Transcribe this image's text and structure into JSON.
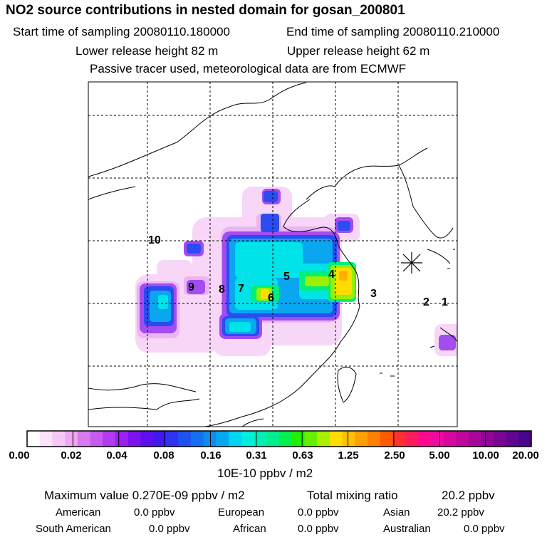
{
  "header": {
    "title": "NO2 source contributions in nested domain for gosan_200801",
    "start_label": "Start time of sampling 20080110.180000",
    "end_label": "End time of sampling 20080110.210000",
    "lower_label": "Lower release height   82 m",
    "upper_label": "Upper release height   62 m",
    "tracer_label": "Passive tracer used, meteorological data are from ECMWF"
  },
  "map": {
    "region_markers": [
      "1",
      "2",
      "3",
      "4",
      "5",
      "6",
      "7",
      "8",
      "9",
      "10"
    ],
    "receptor_symbol": "gosan-receptor-star"
  },
  "colorbar": {
    "labels": [
      "0.00",
      "0.02",
      "0.04",
      "0.08",
      "0.16",
      "0.31",
      "0.63",
      "1.25",
      "2.50",
      "5.00",
      "10.00",
      "20.00"
    ],
    "unit": "10E-10 ppbv / m2",
    "colors": [
      "#ffffff",
      "#fbe3fb",
      "#f5c8f7",
      "#efa7f3",
      "#d77cee",
      "#c75bef",
      "#b03bef",
      "#9c20ef",
      "#7d12ef",
      "#5e0ff0",
      "#3f19f0",
      "#2d33f0",
      "#1e52f0",
      "#1470f0",
      "#0b8df0",
      "#06a9f0",
      "#00d4f0",
      "#00ecdf",
      "#00efb8",
      "#00ef8e",
      "#00ef4f",
      "#20ef00",
      "#66ef00",
      "#a8ef00",
      "#ffdd00",
      "#ffc000",
      "#ffa000",
      "#ff8000",
      "#ff5a00",
      "#ff3030",
      "#ff1c5c",
      "#ff0a8c",
      "#f00aa0",
      "#d8089e",
      "#c0069c",
      "#a8069a",
      "#900696",
      "#780692",
      "#600690",
      "#48068c"
    ]
  },
  "stats": {
    "max_label": "Maximum value  0.270E-09 ppbv / m2",
    "total_label": "Total mixing ratio",
    "total_value": "20.2 ppbv",
    "american_label": "American",
    "american_value": "0.0 ppbv",
    "european_label": "European",
    "european_value": "0.0 ppbv",
    "asian_label": "Asian",
    "asian_value": "20.2 ppbv",
    "south_american_label": "South American",
    "south_american_value": "0.0 ppbv",
    "african_label": "African",
    "african_value": "0.0 ppbv",
    "australian_label": "Australian",
    "australian_value": "0.0 ppbv"
  }
}
